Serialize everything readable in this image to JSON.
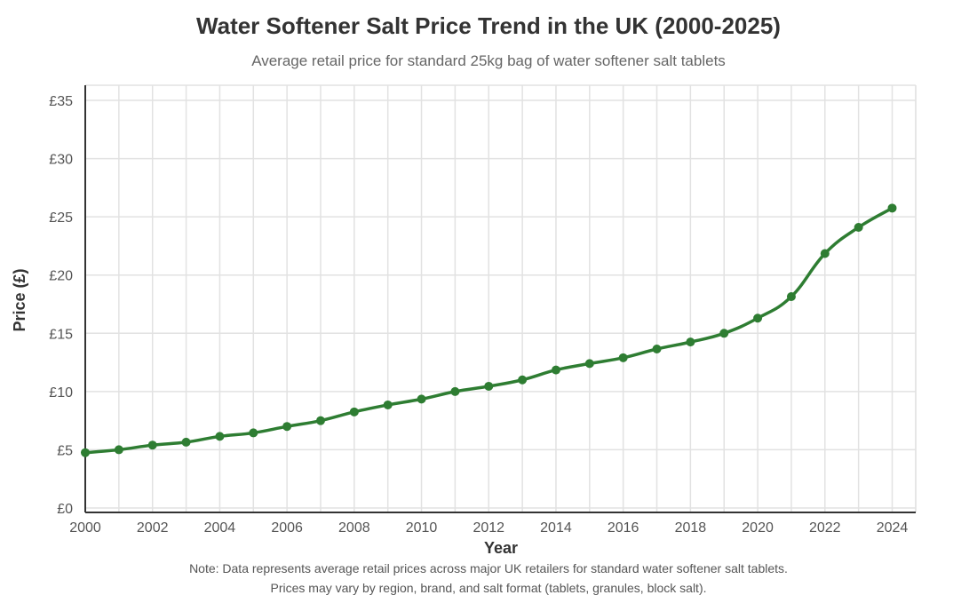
{
  "chart_data": {
    "type": "line",
    "title": "Water Softener Salt Price Trend in the UK (2000-2025)",
    "subtitle": "Average retail price for standard 25kg bag of water softener salt tablets",
    "xlabel": "Year",
    "ylabel": "Price (£)",
    "ylim": [
      0,
      35
    ],
    "xlim": [
      2000,
      2024.7
    ],
    "grid": true,
    "y_ticks": [
      0,
      5,
      10,
      15,
      20,
      25,
      30,
      35
    ],
    "y_tick_labels": [
      "£0",
      "£5",
      "£10",
      "£15",
      "£20",
      "£25",
      "£30",
      "£35"
    ],
    "x_ticks": [
      2000,
      2002,
      2004,
      2006,
      2008,
      2010,
      2012,
      2014,
      2016,
      2018,
      2020,
      2022,
      2024
    ],
    "x_tick_labels": [
      "2000",
      "2002",
      "2004",
      "2006",
      "2008",
      "2010",
      "2012",
      "2014",
      "2016",
      "2018",
      "2020",
      "2022",
      "2024"
    ],
    "x": [
      2000,
      2001,
      2002,
      2003,
      2004,
      2005,
      2006,
      2007,
      2008,
      2009,
      2010,
      2011,
      2012,
      2013,
      2014,
      2015,
      2016,
      2017,
      2018,
      2019,
      2020,
      2021,
      2022,
      2023,
      2024
    ],
    "series": [
      {
        "values": [
          4.75,
          5.0,
          5.4,
          5.65,
          6.15,
          6.45,
          7.0,
          7.5,
          8.25,
          8.85,
          9.35,
          10.0,
          10.45,
          11.0,
          11.85,
          12.4,
          12.9,
          13.65,
          14.25,
          15.0,
          16.3,
          18.15,
          21.85,
          24.1,
          25.75
        ],
        "color": "#2e7d32"
      }
    ],
    "notes": [
      "Note: Data represents average retail prices across major UK retailers for standard water softener salt tablets.",
      "Prices may vary by region, brand, and salt format (tablets, granules, block salt)."
    ]
  }
}
